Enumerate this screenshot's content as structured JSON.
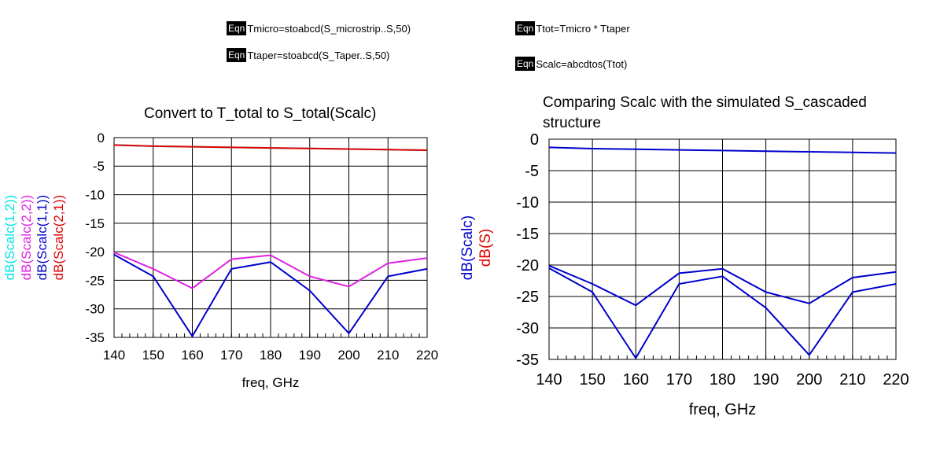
{
  "equations": [
    {
      "tag": "Eqn",
      "text": "Tmicro=stoabcd(S_microstrip..S,50)"
    },
    {
      "tag": "Eqn",
      "text": "Ttaper=stoabcd(S_Taper..S,50)"
    },
    {
      "tag": "Eqn",
      "text": "Ttot=Tmicro * Ttaper"
    },
    {
      "tag": "Eqn",
      "text": "Scalc=abcdtos(Ttot)"
    }
  ],
  "chart_data": [
    {
      "type": "line",
      "title": "Convert to T_total to S_total(Scalc)",
      "xlabel": "freq, GHz",
      "ylabels": [
        {
          "text": "dB(Scalc(1,2))",
          "color": "#00e5e5"
        },
        {
          "text": "dB(Scalc(2,2))",
          "color": "#e020e0"
        },
        {
          "text": "dB(Scalc(1,1))",
          "color": "#0000cc"
        },
        {
          "text": "dB(Scalc(2,1))",
          "color": "#e00000"
        }
      ],
      "xlim": [
        140,
        220
      ],
      "ylim": [
        -35,
        0
      ],
      "xticks": [
        140,
        150,
        160,
        170,
        180,
        190,
        200,
        210,
        220
      ],
      "yticks": [
        0,
        -5,
        -10,
        -15,
        -20,
        -25,
        -30,
        -35
      ],
      "grid": true,
      "x": [
        140,
        150,
        160,
        170,
        180,
        190,
        200,
        210,
        220
      ],
      "series": [
        {
          "name": "dB(Scalc(1,2))",
          "color": "#00e5e5",
          "values": [
            -1.3,
            -1.5,
            -1.6,
            -1.7,
            -1.8,
            -1.9,
            -2.0,
            -2.1,
            -2.2
          ]
        },
        {
          "name": "dB(Scalc(2,1))",
          "color": "#e00000",
          "values": [
            -1.3,
            -1.5,
            -1.6,
            -1.7,
            -1.8,
            -1.9,
            -2.0,
            -2.1,
            -2.2
          ]
        },
        {
          "name": "dB(Scalc(1,1))",
          "color": "#0000cc",
          "values": [
            -20.5,
            -24.3,
            -34.8,
            -23,
            -21.8,
            -26.8,
            -34.3,
            -24.3,
            -23
          ]
        },
        {
          "name": "dB(Scalc(2,2))",
          "color": "#e020e0",
          "values": [
            -20.1,
            -23,
            -26.4,
            -21.3,
            -20.6,
            -24.3,
            -26.1,
            -22,
            -21.1
          ]
        }
      ]
    },
    {
      "type": "line",
      "title": "Comparing Scalc with the simulated S_cascaded structure",
      "xlabel": "freq, GHz",
      "ylabels": [
        {
          "text": "dB(Scalc)",
          "color": "#0000cc"
        },
        {
          "text": "dB(S)",
          "color": "#e00000"
        }
      ],
      "xlim": [
        140,
        220
      ],
      "ylim": [
        -35,
        0
      ],
      "xticks": [
        140,
        150,
        160,
        170,
        180,
        190,
        200,
        210,
        220
      ],
      "yticks": [
        0,
        -5,
        -10,
        -15,
        -20,
        -25,
        -30,
        -35
      ],
      "grid": true,
      "x": [
        140,
        150,
        160,
        170,
        180,
        190,
        200,
        210,
        220
      ],
      "series": [
        {
          "color": "#0000cc",
          "values": [
            -1.3,
            -1.5,
            -1.6,
            -1.7,
            -1.8,
            -1.9,
            -2.0,
            -2.1,
            -2.2
          ]
        },
        {
          "color": "#0000cc",
          "values": [
            -20.5,
            -24.3,
            -34.8,
            -23,
            -21.8,
            -26.8,
            -34.3,
            -24.3,
            -23
          ]
        },
        {
          "color": "#0000cc",
          "values": [
            -20.1,
            -23,
            -26.4,
            -21.3,
            -20.6,
            -24.3,
            -26.1,
            -22,
            -21.1
          ]
        }
      ]
    }
  ]
}
